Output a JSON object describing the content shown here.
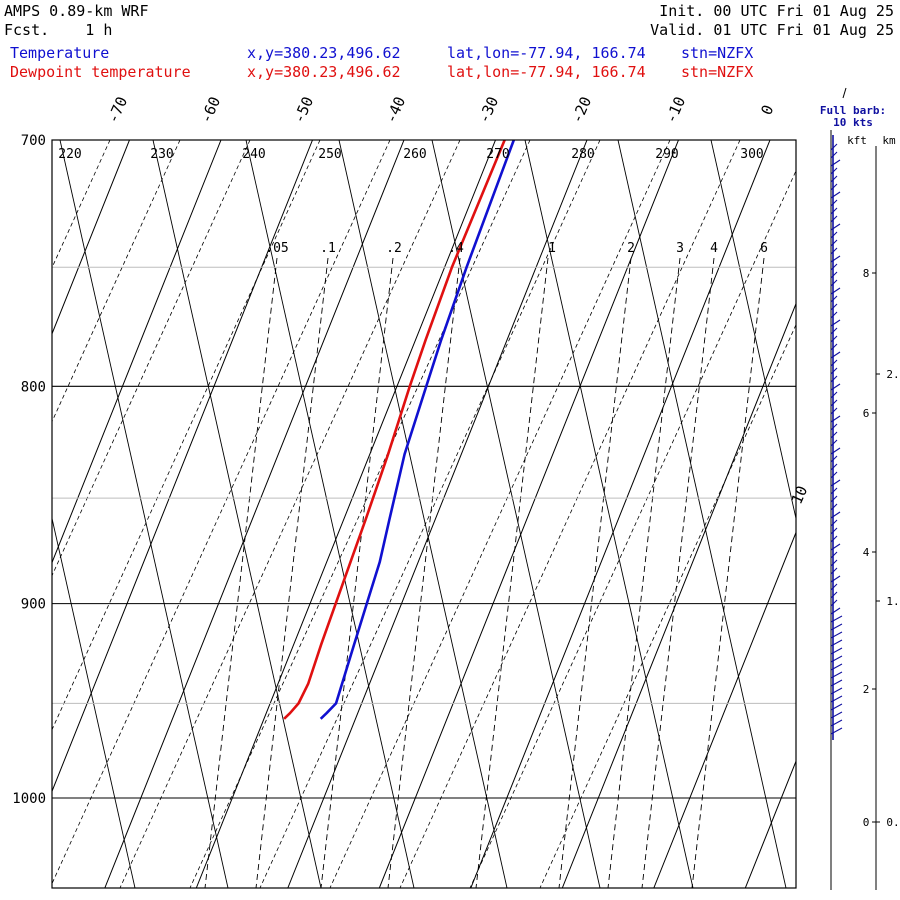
{
  "header": {
    "model": "AMPS 0.89-km WRF",
    "fcst_label": "Fcst.",
    "fcst_value": "1 h",
    "init": "Init. 00 UTC Fri 01 Aug 25",
    "valid": "Valid. 01 UTC Fri 01 Aug 25",
    "temp_label": "Temperature",
    "dew_label": "Dewpoint temperature",
    "xy": "x,y=380.23,496.62",
    "latlon": "lat,lon=-77.94, 166.74",
    "station": "stn=NZFX"
  },
  "barb_legend": {
    "line1": "Full barb:",
    "line2": "10 kts"
  },
  "height_units": {
    "kft": "kft",
    "km": "km"
  },
  "colors": {
    "temperature": "#1010d0",
    "dewpoint": "#e01010",
    "barbs": "#1010a0"
  },
  "chart_data": {
    "type": "line",
    "title": "",
    "yscale": "log-pressure",
    "pressure_range": [
      1040,
      700
    ],
    "pressure_ticks": [
      700,
      800,
      900,
      1000
    ],
    "temp_isotherm_labels": [
      "-70",
      "-60",
      "-50",
      "-40",
      "-30",
      "-20",
      "-10",
      "0",
      "10"
    ],
    "theta_labels": [
      "220",
      "230",
      "240",
      "250",
      "260",
      "270",
      "280",
      "290",
      "300"
    ],
    "mixing_ratio_labels": [
      ".05",
      ".1",
      ".2",
      ".4",
      "1",
      "2",
      "3",
      "4",
      "6"
    ],
    "kft_ticks": [
      "8",
      "6",
      "4",
      "2",
      "0"
    ],
    "km_ticks": [
      "2.",
      "1.",
      "0."
    ],
    "series": [
      {
        "name": "Temperature",
        "points": [
          [
            700,
            -28.0
          ],
          [
            750,
            -27.6
          ],
          [
            780,
            -27.2
          ],
          [
            800,
            -26.8
          ],
          [
            830,
            -26.2
          ],
          [
            860,
            -25.0
          ],
          [
            880,
            -24.2
          ],
          [
            900,
            -23.8
          ],
          [
            920,
            -23.4
          ],
          [
            940,
            -23.0
          ],
          [
            950,
            -22.8
          ],
          [
            955,
            -23.4
          ],
          [
            958,
            -23.8
          ]
        ]
      },
      {
        "name": "Dewpoint temperature",
        "points": [
          [
            700,
            -29.0
          ],
          [
            750,
            -29.2
          ],
          [
            780,
            -28.9
          ],
          [
            800,
            -28.6
          ],
          [
            830,
            -28.0
          ],
          [
            860,
            -27.6
          ],
          [
            880,
            -27.4
          ],
          [
            900,
            -27.2
          ],
          [
            920,
            -27.0
          ],
          [
            940,
            -26.7
          ],
          [
            950,
            -26.9
          ],
          [
            955,
            -27.4
          ],
          [
            958,
            -27.8
          ]
        ]
      }
    ]
  }
}
